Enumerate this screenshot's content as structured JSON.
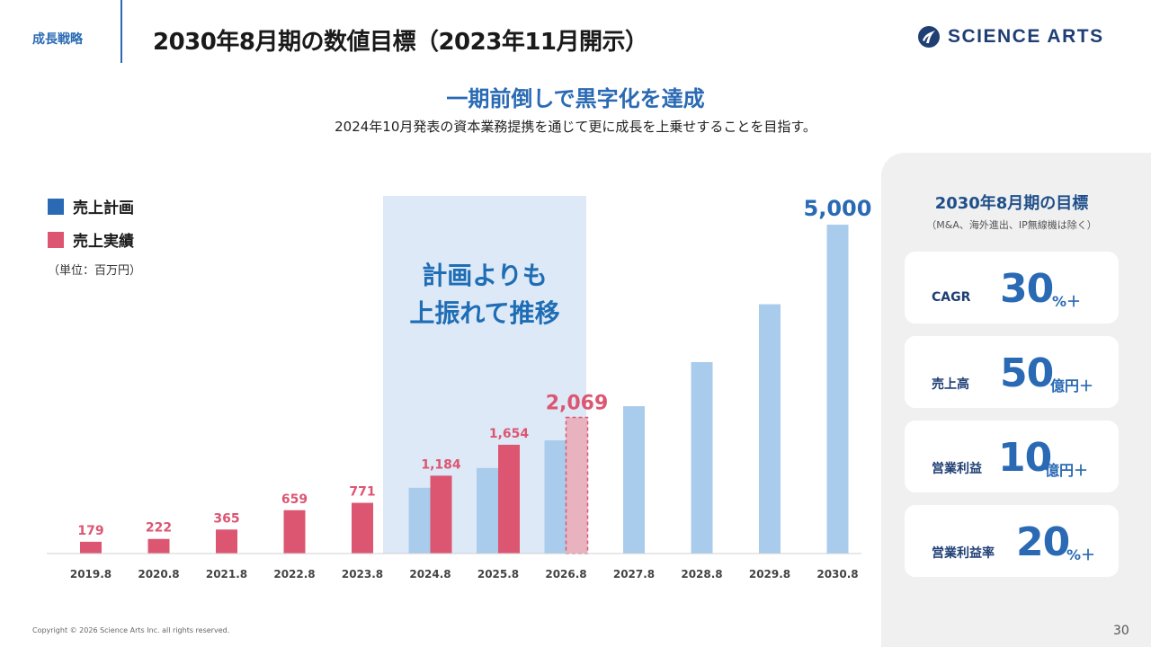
{
  "header": {
    "section_tag": "成長戦略",
    "title": "2030年8月期の数値目標（2023年11月開示）",
    "logo_text": "SCIENCE ARTS"
  },
  "headline": "一期前倒しで黒字化を達成",
  "subline": "2024年10月発表の資本業務提携を通じて更に成長を上乗せすることを目指す。",
  "legend": {
    "plan": "売上計画",
    "actual": "売上実績",
    "unit": "（単位：百万円）"
  },
  "chart_data": {
    "type": "bar",
    "title": "",
    "xlabel": "",
    "ylabel": "",
    "ylim": [
      0,
      5000
    ],
    "categories": [
      "2019.8",
      "2020.8",
      "2021.8",
      "2022.8",
      "2023.8",
      "2024.8",
      "2025.8",
      "2026.8",
      "2027.8",
      "2028.8",
      "2029.8",
      "2030.8"
    ],
    "series": [
      {
        "name": "売上計画",
        "values": [
          null,
          null,
          null,
          null,
          null,
          1000,
          1300,
          1720,
          2240,
          2910,
          3790,
          5000
        ]
      },
      {
        "name": "売上実績",
        "values": [
          179,
          222,
          365,
          659,
          771,
          1184,
          1654,
          2069,
          null,
          null,
          null,
          null
        ]
      }
    ],
    "data_labels": {
      "actual": [
        "179",
        "222",
        "365",
        "659",
        "771",
        "1,184",
        "1,654",
        "2,069"
      ],
      "plan_2030": "5,000"
    },
    "forecast_category": "2026.8",
    "highlight_range": [
      "2024.8",
      "2026.8"
    ],
    "highlight_text_1": "計画よりも",
    "highlight_text_2": "上振れて推移",
    "colors": {
      "plan": "#a9cbec",
      "actual": "#dc5672",
      "actual_forecast_fill": "#e8b3bf",
      "highlight_bg": "#dde9f7",
      "highlight_text": "#1f6db5",
      "plan_label": "#2a6ab4"
    }
  },
  "panel": {
    "title": "2030年8月期の目標",
    "note": "（M&A、海外進出、IP無線機は除く）",
    "cards": [
      {
        "label": "CAGR",
        "value": "30",
        "suffix": "%＋"
      },
      {
        "label": "売上高",
        "value": "50",
        "suffix": "億円＋"
      },
      {
        "label": "営業利益",
        "value": "10",
        "suffix": "億円＋"
      },
      {
        "label": "営業利益率",
        "value": "20",
        "suffix": "%＋"
      }
    ]
  },
  "footer": {
    "copyright": "Copyright © 2026 Science Arts Inc. all rights reserved.",
    "page": "30"
  },
  "colors": {
    "brand_blue": "#2a6ab4",
    "logo_navy": "#1f3f74",
    "panel_bg": "#f0f0f0"
  }
}
